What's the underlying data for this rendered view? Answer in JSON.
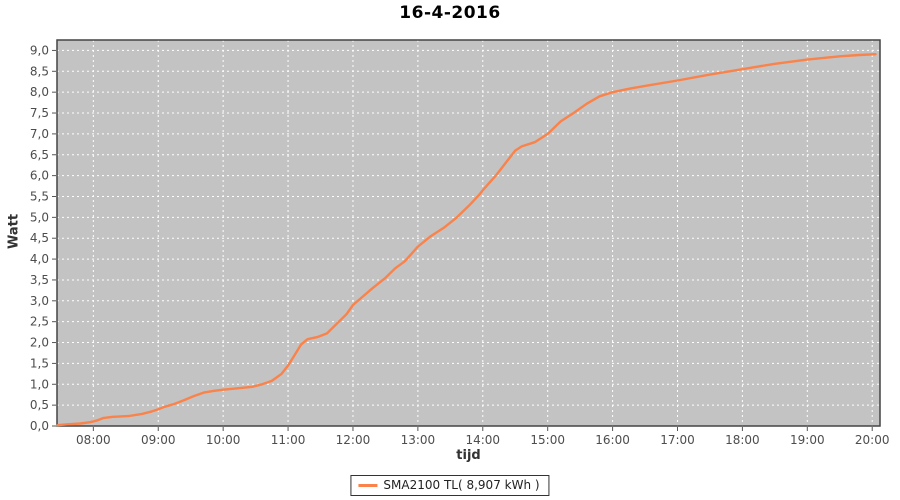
{
  "title": "16-4-2016",
  "colors": {
    "plot_background": "#c3c3c3",
    "grid": "#ffffff",
    "series": "#f9834a",
    "plot_border": "#444444",
    "tick": "#555555",
    "tick_label": "#4d4d4d"
  },
  "legend": {
    "label": "SMA2100 TL( 8,907 kWh )"
  },
  "chart_data": {
    "type": "line",
    "title": "16-4-2016",
    "xlabel": "tijd",
    "ylabel": "Watt",
    "legend_position": "bottom-center",
    "grid": "white-dashed-on-gray",
    "xlim_hours": [
      7.44,
      20.12
    ],
    "ylim": [
      0,
      9.25
    ],
    "x_ticks": [
      {
        "hour": 8,
        "label": "08:00"
      },
      {
        "hour": 9,
        "label": "09:00"
      },
      {
        "hour": 10,
        "label": "10:00"
      },
      {
        "hour": 11,
        "label": "11:00"
      },
      {
        "hour": 12,
        "label": "12:00"
      },
      {
        "hour": 13,
        "label": "13:00"
      },
      {
        "hour": 14,
        "label": "14:00"
      },
      {
        "hour": 15,
        "label": "15:00"
      },
      {
        "hour": 16,
        "label": "16:00"
      },
      {
        "hour": 17,
        "label": "17:00"
      },
      {
        "hour": 18,
        "label": "18:00"
      },
      {
        "hour": 19,
        "label": "19:00"
      },
      {
        "hour": 20,
        "label": "20:00"
      }
    ],
    "y_ticks": [
      {
        "value": 0.0,
        "label": "0,0"
      },
      {
        "value": 0.5,
        "label": "0,5"
      },
      {
        "value": 1.0,
        "label": "1,0"
      },
      {
        "value": 1.5,
        "label": "1,5"
      },
      {
        "value": 2.0,
        "label": "2,0"
      },
      {
        "value": 2.5,
        "label": "2,5"
      },
      {
        "value": 3.0,
        "label": "3,0"
      },
      {
        "value": 3.5,
        "label": "3,5"
      },
      {
        "value": 4.0,
        "label": "4,0"
      },
      {
        "value": 4.5,
        "label": "4,5"
      },
      {
        "value": 5.0,
        "label": "5,0"
      },
      {
        "value": 5.5,
        "label": "5,5"
      },
      {
        "value": 6.0,
        "label": "6,0"
      },
      {
        "value": 6.5,
        "label": "6,5"
      },
      {
        "value": 7.0,
        "label": "7,0"
      },
      {
        "value": 7.5,
        "label": "7,5"
      },
      {
        "value": 8.0,
        "label": "8,0"
      },
      {
        "value": 8.5,
        "label": "8,5"
      },
      {
        "value": 9.0,
        "label": "9,0"
      }
    ],
    "series": [
      {
        "name": "SMA2100 TL( 8,907 kWh )",
        "color": "#f9834a",
        "total_kwh": "8,907",
        "points": [
          [
            7.45,
            0.02
          ],
          [
            7.6,
            0.04
          ],
          [
            7.8,
            0.06
          ],
          [
            7.95,
            0.09
          ],
          [
            8.05,
            0.13
          ],
          [
            8.15,
            0.19
          ],
          [
            8.3,
            0.22
          ],
          [
            8.55,
            0.24
          ],
          [
            8.75,
            0.29
          ],
          [
            8.9,
            0.35
          ],
          [
            9.0,
            0.4
          ],
          [
            9.1,
            0.46
          ],
          [
            9.25,
            0.53
          ],
          [
            9.4,
            0.62
          ],
          [
            9.55,
            0.72
          ],
          [
            9.7,
            0.8
          ],
          [
            9.85,
            0.84
          ],
          [
            10.0,
            0.87
          ],
          [
            10.2,
            0.9
          ],
          [
            10.45,
            0.94
          ],
          [
            10.6,
            1.0
          ],
          [
            10.75,
            1.08
          ],
          [
            10.9,
            1.25
          ],
          [
            11.0,
            1.45
          ],
          [
            11.1,
            1.7
          ],
          [
            11.2,
            1.95
          ],
          [
            11.3,
            2.08
          ],
          [
            11.45,
            2.13
          ],
          [
            11.6,
            2.22
          ],
          [
            11.75,
            2.45
          ],
          [
            11.9,
            2.68
          ],
          [
            12.0,
            2.9
          ],
          [
            12.15,
            3.1
          ],
          [
            12.3,
            3.3
          ],
          [
            12.5,
            3.55
          ],
          [
            12.65,
            3.78
          ],
          [
            12.8,
            3.95
          ],
          [
            13.0,
            4.3
          ],
          [
            13.2,
            4.55
          ],
          [
            13.4,
            4.75
          ],
          [
            13.6,
            5.0
          ],
          [
            13.8,
            5.3
          ],
          [
            13.95,
            5.55
          ],
          [
            14.0,
            5.65
          ],
          [
            14.2,
            6.0
          ],
          [
            14.35,
            6.3
          ],
          [
            14.5,
            6.6
          ],
          [
            14.6,
            6.7
          ],
          [
            14.8,
            6.8
          ],
          [
            15.0,
            7.0
          ],
          [
            15.2,
            7.3
          ],
          [
            15.4,
            7.5
          ],
          [
            15.6,
            7.72
          ],
          [
            15.8,
            7.9
          ],
          [
            16.0,
            8.0
          ],
          [
            16.25,
            8.08
          ],
          [
            16.5,
            8.15
          ],
          [
            17.0,
            8.28
          ],
          [
            17.5,
            8.42
          ],
          [
            18.0,
            8.55
          ],
          [
            18.5,
            8.68
          ],
          [
            19.0,
            8.78
          ],
          [
            19.5,
            8.86
          ],
          [
            19.8,
            8.89
          ],
          [
            20.05,
            8.91
          ]
        ]
      }
    ]
  }
}
